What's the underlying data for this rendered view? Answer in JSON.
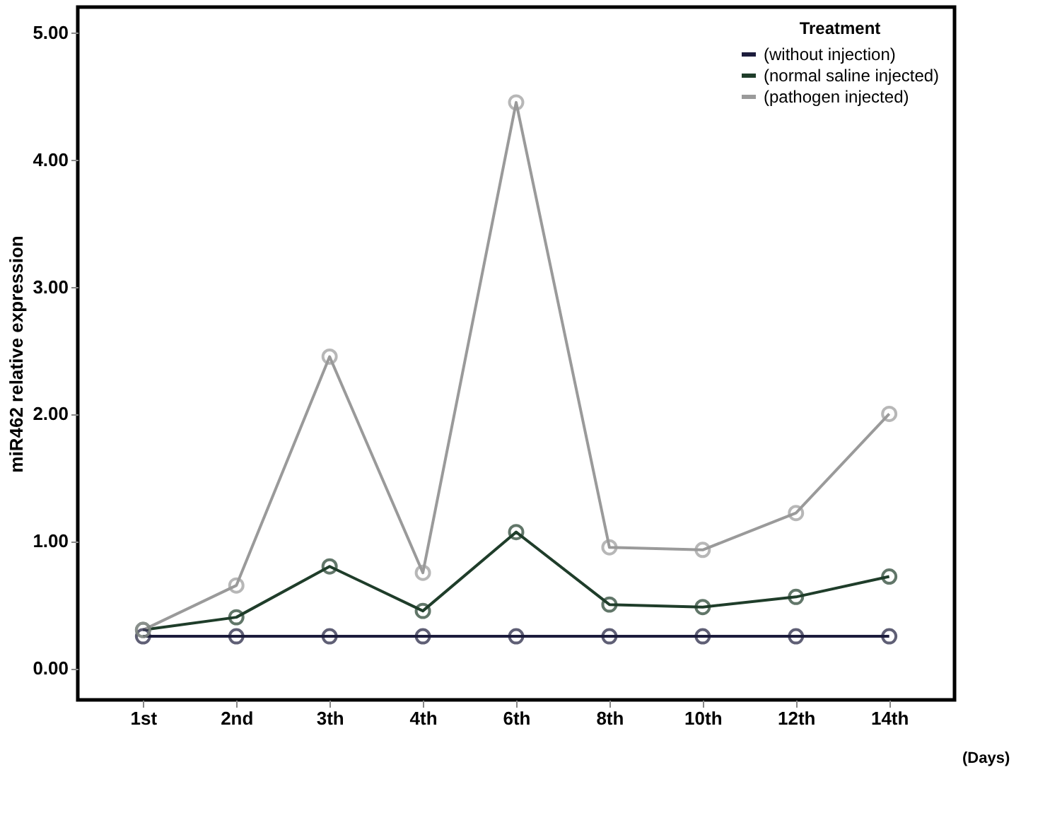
{
  "chart_data": {
    "type": "line",
    "xlabel": "(Days)",
    "ylabel": "miR462 relative expression",
    "legend_title": "Treatment",
    "categories": [
      "1st",
      "2nd",
      "3th",
      "4th",
      "6th",
      "8th",
      "10th",
      "12th",
      "14th"
    ],
    "series": [
      {
        "name": "(without injection)",
        "color": "#1c1c3c",
        "values": [
          0.25,
          0.25,
          0.25,
          0.25,
          0.25,
          0.25,
          0.25,
          0.25,
          0.25
        ]
      },
      {
        "name": "(normal saline injected)",
        "color": "#1f3d2a",
        "values": [
          0.3,
          0.4,
          0.8,
          0.45,
          1.07,
          0.5,
          0.48,
          0.56,
          0.72
        ]
      },
      {
        "name": "(pathogen injected)",
        "color": "#9a9a9a",
        "values": [
          0.3,
          0.65,
          2.45,
          0.75,
          4.45,
          0.95,
          0.93,
          1.22,
          2.0
        ]
      }
    ],
    "ylim": [
      -0.25,
      5.2
    ],
    "yticks": [
      {
        "value": 0,
        "label": "0.00"
      },
      {
        "value": 1,
        "label": "1.00"
      },
      {
        "value": 2,
        "label": "2.00"
      },
      {
        "value": 3,
        "label": "3.00"
      },
      {
        "value": 4,
        "label": "4.00"
      },
      {
        "value": 5,
        "label": "5.00"
      }
    ],
    "grid": false,
    "legend": "top right",
    "marker": "circle",
    "line_style": "solid"
  }
}
